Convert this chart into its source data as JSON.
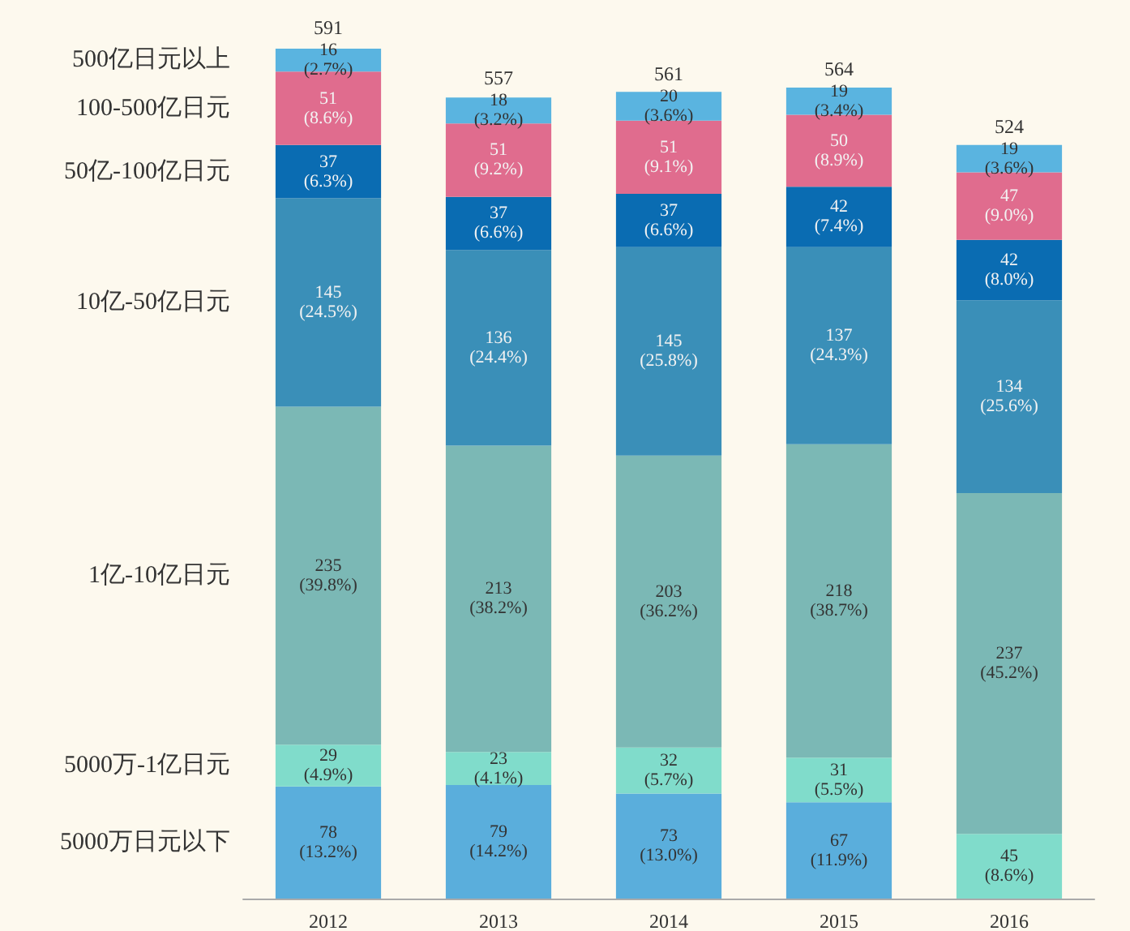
{
  "chart_data": {
    "type": "bar",
    "stacked": true,
    "legend": false,
    "tick_labels": "x",
    "categories": [
      "2012",
      "2013",
      "2014",
      "2015",
      "2016"
    ],
    "series": [
      {
        "name": "5000万日元以下",
        "color": "#5aaedc",
        "values": [
          78,
          79,
          73,
          67,
          null
        ],
        "value_labels": [
          "78\n(13.2%)",
          "79\n(14.2%)",
          "73\n(13.0%)",
          "67\n(11.9%)",
          null
        ]
      },
      {
        "name": "5000万-1亿日元",
        "color": "#80dccb",
        "values": [
          29,
          23,
          32,
          31,
          45
        ],
        "value_labels": [
          "29\n(4.9%)",
          "23\n(4.1%)",
          "32\n(5.7%)",
          "31\n(5.5%)",
          "45\n(8.6%)"
        ]
      },
      {
        "name": "1亿-10亿日元",
        "color": "#7bb8b5",
        "values": [
          235,
          213,
          203,
          218,
          237
        ],
        "value_labels": [
          "235\n(39.8%)",
          "213\n(38.2%)",
          "203\n(36.2%)",
          "218\n(38.7%)",
          "237\n(45.2%)"
        ]
      },
      {
        "name": "10亿-50亿日元",
        "color": "#3a8fb8",
        "values": [
          145,
          136,
          145,
          137,
          134
        ],
        "value_labels": [
          "145\n(24.5%)",
          "136\n(24.4%)",
          "145\n(25.8%)",
          "137\n(24.3%)",
          "134\n(25.6%)"
        ]
      },
      {
        "name": "50亿-100亿日元",
        "color": "#0a6cb2",
        "values": [
          37,
          37,
          37,
          42,
          42
        ],
        "value_labels": [
          "37\n(6.3%)",
          "37\n(6.6%)",
          "37\n(6.6%)",
          "42\n(7.4%)",
          "42\n(8.0%)"
        ]
      },
      {
        "name": "100-500亿日元",
        "color": "#e06c8e",
        "values": [
          51,
          51,
          51,
          50,
          47
        ],
        "value_labels": [
          "51\n(8.6%)",
          "51\n(9.2%)",
          "51\n(9.1%)",
          "50\n(8.9%)",
          "47\n(9.0%)"
        ]
      },
      {
        "name": "500亿日元以上",
        "color": "#5ab4e0",
        "values": [
          16,
          18,
          20,
          19,
          19
        ],
        "value_labels": [
          "16\n(2.7%)",
          "18\n(3.2%)",
          "20\n(3.6%)",
          "19\n(3.4%)",
          "19\n(3.6%)"
        ]
      }
    ],
    "totals": [
      "591",
      "557",
      "561",
      "564",
      "524"
    ]
  }
}
